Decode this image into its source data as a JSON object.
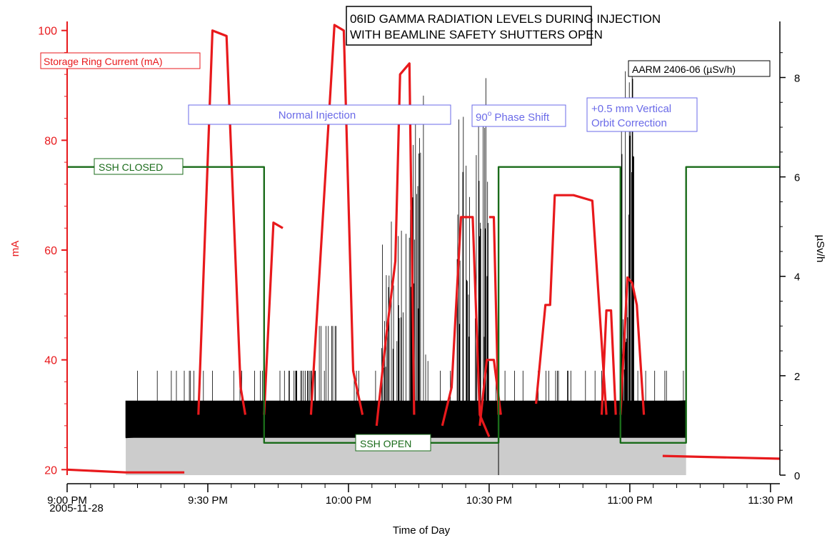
{
  "chart_data": {
    "type": "line",
    "title_lines": [
      "06ID GAMMA RADIATION LEVELS DURING INJECTION",
      "WITH BEAMLINE SAFETY SHUTTERS OPEN"
    ],
    "xlabel": "Time of Day",
    "ylabel_left": "mA",
    "ylabel_right": "µSv/h",
    "x_ticks": [
      "9:00 PM",
      "9:30 PM",
      "10:00 PM",
      "10:30 PM",
      "11:00 PM",
      "11:30 PM"
    ],
    "x_date": "2005-11-28",
    "x_tick_minutes": [
      0,
      30,
      60,
      90,
      120,
      150
    ],
    "xlim_minutes": [
      0,
      152
    ],
    "left_axis": {
      "ylim": [
        19,
        101
      ],
      "ticks": [
        20,
        40,
        60,
        80,
        100
      ]
    },
    "right_axis": {
      "ylim": [
        0,
        9.2
      ],
      "ticks": [
        0,
        2,
        4,
        6,
        8
      ]
    },
    "colors": {
      "current": "#e8191c",
      "shutter": "#1a6b1a",
      "dose": "#000000",
      "dose_fill": "#cccccc",
      "annotation": "#6a6ae8"
    },
    "labels": {
      "current": "Storage Ring Current (mA)",
      "shutter_closed": "SSH CLOSED",
      "shutter_open": "SSH OPEN",
      "dose": "AARM 2406-06 (µSv/h)",
      "normal_injection": "Normal Injection",
      "phase_shift_prefix": "90",
      "phase_shift_sup": "o",
      "phase_shift_suffix": " Phase Shift",
      "orbit_line1": "+0.5 mm Vertical",
      "orbit_line2": "Orbit Correction"
    },
    "series": [
      {
        "name": "Storage Ring Current (mA)",
        "axis": "left",
        "x": [
          0,
          12.5,
          25,
          25,
          28,
          31,
          34,
          37,
          38,
          41,
          42,
          44,
          46,
          48,
          52,
          57,
          59,
          61,
          63,
          63,
          66,
          68,
          70,
          71,
          73,
          74,
          75,
          76,
          77,
          78,
          79,
          80,
          81,
          82,
          83,
          84,
          85,
          86,
          87,
          88,
          89,
          89,
          90,
          91,
          92,
          93,
          94,
          95,
          96,
          97,
          98,
          99,
          100,
          101,
          102,
          103,
          104,
          105,
          106,
          107,
          108,
          109,
          110,
          111,
          111,
          112,
          113,
          114,
          115,
          116,
          117,
          118,
          119,
          120,
          121,
          122,
          123,
          124,
          125,
          126,
          127,
          128,
          129,
          130,
          131,
          132,
          133,
          134,
          135,
          136,
          137,
          138,
          139,
          140,
          141,
          142,
          143,
          144,
          145,
          146,
          147,
          148,
          149,
          150,
          151,
          152
        ],
        "values": [
          20,
          19.5,
          19.5,
          null,
          30,
          100,
          99,
          35,
          30,
          null,
          30,
          65,
          64,
          null,
          30,
          101,
          100,
          38,
          30,
          null,
          28,
          44,
          58,
          92,
          94,
          30,
          null,
          null,
          null,
          null,
          null,
          null,
          null,
          null,
          null,
          null,
          null,
          null,
          null,
          null,
          null,
          null,
          66,
          66,
          30,
          null,
          null,
          null,
          null,
          null,
          null,
          null,
          null,
          null,
          null,
          null,
          null,
          null,
          null,
          null,
          null,
          null,
          null,
          null,
          null,
          40,
          null,
          null,
          null,
          null,
          null,
          null,
          null,
          null,
          null,
          null,
          null,
          null,
          null,
          null,
          null,
          null,
          null,
          null,
          null,
          null,
          null,
          null,
          null,
          null,
          null,
          null,
          null,
          null,
          null,
          null,
          null,
          null,
          null,
          null,
          null,
          null,
          null,
          null,
          null,
          22
        ]
      },
      {
        "name": "Storage Ring Current (mA)",
        "axis": "left",
        "x": [
          80,
          82,
          84,
          85,
          86.5,
          88,
          90
        ],
        "values": [
          28,
          35,
          66,
          66,
          66,
          30,
          26
        ]
      },
      {
        "name": "Storage Ring Current (mA)",
        "axis": "left",
        "x": [
          88,
          89.5,
          91,
          92.5
        ],
        "values": [
          28,
          40,
          40,
          30
        ]
      },
      {
        "name": "Storage Ring Current (mA)",
        "axis": "left",
        "x": [
          100,
          102,
          103,
          104,
          105,
          108,
          112,
          115
        ],
        "values": [
          32,
          50,
          50,
          70,
          70,
          70,
          69,
          30
        ]
      },
      {
        "name": "Storage Ring Current (mA)",
        "axis": "left",
        "x": [
          114,
          115,
          116,
          117
        ],
        "values": [
          30,
          49,
          49,
          30
        ]
      },
      {
        "name": "Storage Ring Current (mA)",
        "axis": "left",
        "x": [
          118,
          119.5,
          120.5,
          121.5,
          123
        ],
        "values": [
          30,
          55,
          54,
          50,
          30
        ]
      },
      {
        "name": "Storage Ring Current (mA)",
        "axis": "left",
        "x": [
          127,
          152
        ],
        "values": [
          22.5,
          22
        ]
      },
      {
        "name": "SSH",
        "axis": "right",
        "x": [
          0,
          42,
          42,
          92,
          92,
          118,
          118,
          132,
          132,
          152
        ],
        "values": [
          6.2,
          6.2,
          0.65,
          0.65,
          6.2,
          6.2,
          0.65,
          0.65,
          6.2,
          6.2
        ]
      }
    ]
  }
}
